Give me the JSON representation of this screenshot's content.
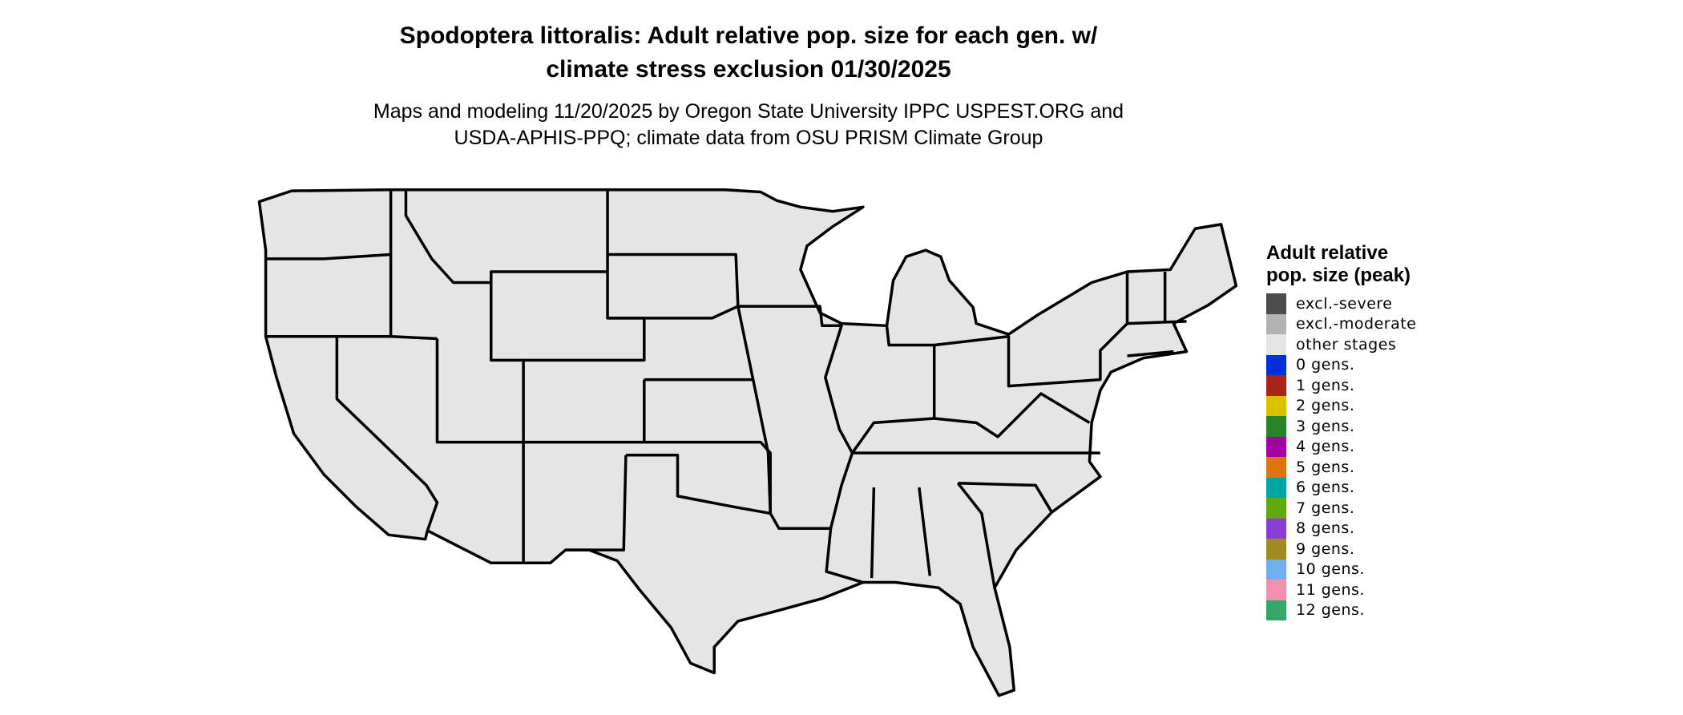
{
  "title": {
    "line1": "Spodoptera littoralis: Adult relative pop. size for each gen. w/",
    "line2": "climate stress exclusion 01/30/2025"
  },
  "subtitle": {
    "line1": "Maps and modeling 11/20/2025 by Oregon State University IPPC USPEST.ORG and",
    "line2": "USDA-APHIS-PPQ; climate data from OSU PRISM Climate Group"
  },
  "map": {
    "region": "contiguous-united-states",
    "fill_color": "#e5e5e5",
    "border_color": "#000000",
    "displayed_category": "other stages"
  },
  "legend": {
    "title": "Adult relative pop. size (peak)",
    "items": [
      {
        "label": "excl.-severe",
        "color": "#4d4d4d"
      },
      {
        "label": "excl.-moderate",
        "color": "#b3b3b3"
      },
      {
        "label": "other stages",
        "color": "#e5e5e5"
      },
      {
        "label": "0 gens.",
        "color": "#0030d8"
      },
      {
        "label": "1 gens.",
        "color": "#a82416"
      },
      {
        "label": "2 gens.",
        "color": "#d8c200"
      },
      {
        "label": "3 gens.",
        "color": "#268426"
      },
      {
        "label": "4 gens.",
        "color": "#a400a4"
      },
      {
        "label": "5 gens.",
        "color": "#dc7414"
      },
      {
        "label": "6 gens.",
        "color": "#00a6a6"
      },
      {
        "label": "7 gens.",
        "color": "#60a80c"
      },
      {
        "label": "8 gens.",
        "color": "#8a3cd6"
      },
      {
        "label": "9 gens.",
        "color": "#a08a22"
      },
      {
        "label": "10 gens.",
        "color": "#72aeee"
      },
      {
        "label": "11 gens.",
        "color": "#f092ae"
      },
      {
        "label": "12 gens.",
        "color": "#36a66a"
      }
    ]
  }
}
